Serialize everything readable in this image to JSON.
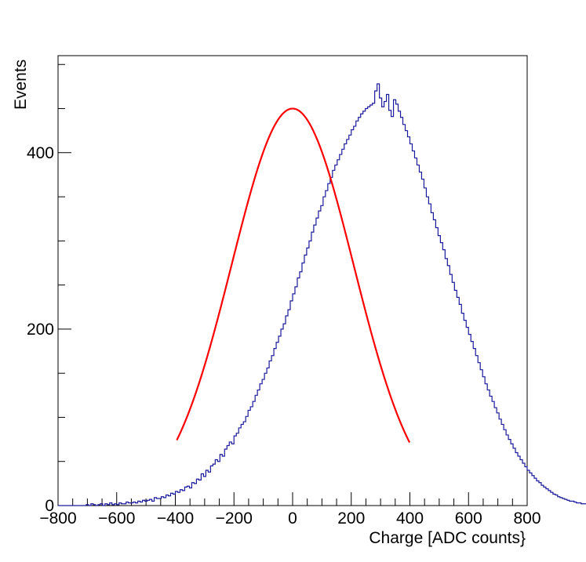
{
  "chart_data": {
    "type": "histogram",
    "title": "",
    "xlabel": "Charge [ADC counts}",
    "ylabel": "Events",
    "xlim": [
      -800,
      800
    ],
    "ylim": [
      0,
      510
    ],
    "grid": false,
    "x_ticks": [
      -800,
      -600,
      -400,
      -200,
      0,
      200,
      400,
      600,
      800
    ],
    "x_tick_labels": [
      "−800",
      "−600",
      "−400",
      "−200",
      "0",
      "200",
      "400",
      "600",
      "800"
    ],
    "y_ticks": [
      0,
      200,
      400
    ],
    "y_tick_labels": [
      "0",
      "200",
      "400"
    ],
    "histogram": {
      "name": "",
      "color": "#1a1a9c",
      "bin_width": 8,
      "x_start": -800,
      "counts": [
        0,
        0,
        0,
        0,
        0,
        0,
        0,
        0,
        0,
        0,
        0,
        0,
        1,
        0,
        2,
        1,
        0,
        1,
        2,
        0,
        2,
        1,
        3,
        1,
        2,
        1,
        3,
        2,
        2,
        4,
        3,
        3,
        4,
        3,
        5,
        4,
        6,
        5,
        6,
        7,
        5,
        9,
        8,
        8,
        10,
        9,
        12,
        11,
        14,
        13,
        16,
        15,
        18,
        17,
        21,
        22,
        20,
        26,
        25,
        30,
        29,
        36,
        33,
        40,
        38,
        45,
        47,
        52,
        50,
        58,
        56,
        64,
        68,
        72,
        70,
        79,
        82,
        88,
        92,
        95,
        101,
        108,
        112,
        118,
        125,
        131,
        138,
        143,
        150,
        156,
        164,
        170,
        178,
        185,
        192,
        200,
        206,
        215,
        222,
        232,
        240,
        248,
        258,
        265,
        275,
        284,
        292,
        300,
        310,
        318,
        326,
        334,
        340,
        350,
        357,
        365,
        372,
        380,
        386,
        392,
        398,
        404,
        410,
        415,
        420,
        426,
        430,
        436,
        440,
        444,
        447,
        450,
        452,
        454,
        456,
        470,
        478,
        462,
        452,
        458,
        466,
        448,
        441,
        460,
        455,
        447,
        440,
        432,
        425,
        418,
        410,
        402,
        394,
        386,
        378,
        370,
        360,
        350,
        342,
        332,
        324,
        315,
        306,
        298,
        290,
        280,
        272,
        262,
        253,
        244,
        236,
        228,
        218,
        210,
        202,
        194,
        186,
        178,
        170,
        162,
        154,
        146,
        138,
        131,
        124,
        118,
        111,
        105,
        98,
        92,
        86,
        80,
        75,
        70,
        65,
        60,
        56,
        52,
        48,
        44,
        40,
        37,
        34,
        31,
        28,
        26,
        23,
        21,
        19,
        17,
        15,
        13,
        12,
        10,
        9,
        8,
        7,
        6,
        5,
        5,
        4,
        3,
        3,
        2,
        2,
        2,
        1,
        1,
        1,
        1,
        0,
        1,
        0,
        1,
        0,
        0,
        0,
        0,
        0,
        0,
        0,
        0,
        0,
        0,
        0,
        0,
        0,
        0,
        0,
        0,
        0,
        0,
        0,
        0,
        0,
        0,
        0,
        0
      ]
    },
    "fit": {
      "name": "",
      "color": "#ff0000",
      "function": "gaus",
      "constant": 450,
      "mean": 0,
      "sigma": 208,
      "range": [
        -395,
        400
      ]
    }
  }
}
